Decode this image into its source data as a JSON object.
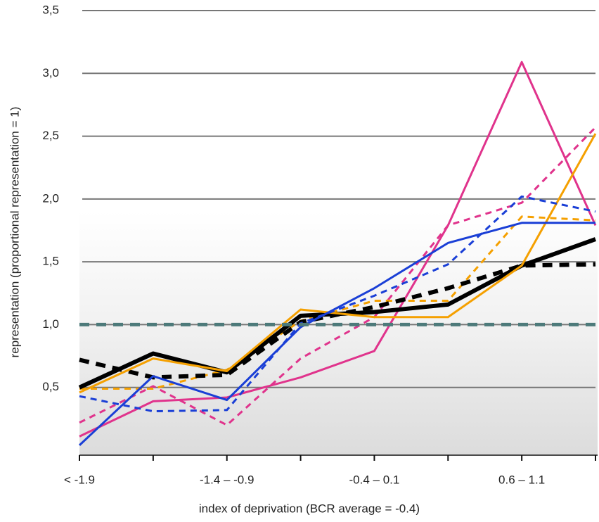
{
  "chart_data": {
    "type": "line",
    "x_label": "index of deprivation (BCR average = -0.4)",
    "y_label": "representation (proportional representation = 1)",
    "categories": [
      "< -1.9",
      null,
      "-1.4 – -0.9",
      null,
      "-0.4 – 0.1",
      null,
      "0.6 – 1.1",
      null
    ],
    "ylim": [
      0,
      3.5
    ],
    "yticks": [
      {
        "value": 0.5,
        "label": "0,5"
      },
      {
        "value": 1.0,
        "label": "1,0"
      },
      {
        "value": 1.5,
        "label": "1,5"
      },
      {
        "value": 2.0,
        "label": "2,0"
      },
      {
        "value": 2.5,
        "label": "2,5"
      },
      {
        "value": 3.0,
        "label": "3,0"
      },
      {
        "value": 3.5,
        "label": "3,5"
      }
    ],
    "grid": true,
    "series": [
      {
        "color": "#e0338c",
        "width": 3,
        "dashed": false,
        "values": [
          0.11,
          0.39,
          0.42,
          0.58,
          0.79,
          1.79,
          3.09,
          1.79
        ]
      },
      {
        "color": "#e0338c",
        "width": 3,
        "dashed": true,
        "values": [
          0.22,
          0.51,
          0.2,
          0.73,
          1.06,
          1.79,
          1.97,
          2.57
        ]
      },
      {
        "color": "#f5a000",
        "width": 3,
        "dashed": true,
        "values": [
          0.49,
          0.49,
          0.64,
          1.03,
          1.19,
          1.19,
          1.86,
          1.83
        ]
      },
      {
        "color": "#000000",
        "width": 6,
        "dashed": true,
        "values": [
          0.72,
          0.58,
          0.6,
          1.02,
          1.14,
          1.29,
          1.47,
          1.48
        ]
      },
      {
        "color": "#000000",
        "width": 6,
        "dashed": false,
        "values": [
          0.5,
          0.77,
          0.62,
          1.07,
          1.1,
          1.16,
          1.47,
          1.68
        ]
      },
      {
        "color": "#f5a000",
        "width": 3,
        "dashed": false,
        "values": [
          0.46,
          0.73,
          0.63,
          1.12,
          1.06,
          1.06,
          1.47,
          2.52
        ]
      },
      {
        "color": "#1a3fd6",
        "width": 3,
        "dashed": true,
        "values": [
          0.43,
          0.31,
          0.32,
          1.01,
          1.23,
          1.48,
          2.02,
          1.9
        ]
      },
      {
        "color": "#1a3fd6",
        "width": 3,
        "dashed": false,
        "values": [
          0.04,
          0.59,
          0.4,
          0.98,
          1.29,
          1.65,
          1.81,
          1.81
        ]
      },
      {
        "color": "#4d7a7a",
        "width": 5,
        "dashed": true,
        "values": [
          1.0,
          1.0,
          1.0,
          1.0,
          1.0,
          1.0,
          1.0,
          1.0
        ]
      }
    ]
  }
}
